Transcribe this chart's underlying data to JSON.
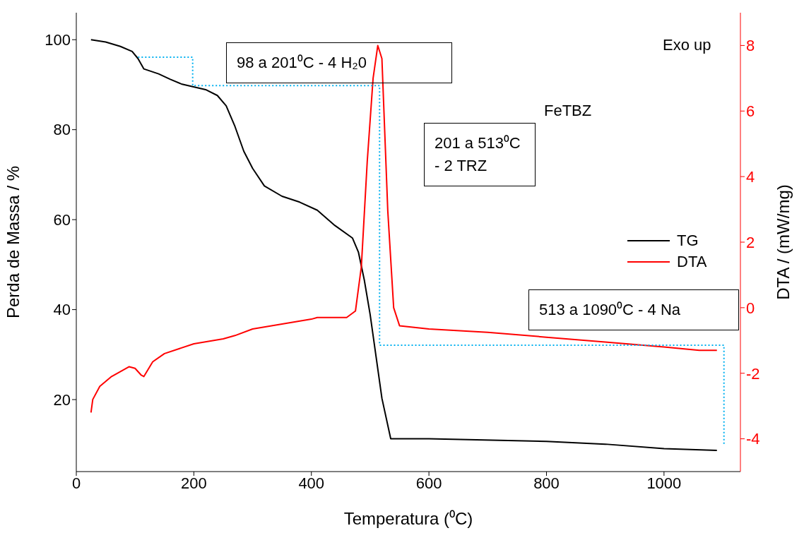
{
  "chart_data": {
    "type": "line",
    "xlabel": "Temperatura (⁰C)",
    "ylabel": "Perda de Massa / %",
    "y2label": "DTA / (mW/mg)",
    "xlim": [
      0,
      1130
    ],
    "xticks": [
      0,
      200,
      400,
      600,
      800,
      1000
    ],
    "ylim": [
      4,
      106
    ],
    "yticks": [
      20,
      40,
      60,
      80,
      100
    ],
    "y2lim": [
      -5,
      9
    ],
    "y2ticks": [
      -4,
      -2,
      0,
      2,
      4,
      6,
      8
    ],
    "grid": false,
    "legend": "right",
    "marker": "none",
    "annotations": [
      "Exo up",
      "FeTBZ",
      "98 a 201⁰C - 4 H₂0",
      "201 a 513⁰C - 2 TRZ",
      "513 a 1090⁰C - 4 Na"
    ],
    "series": [
      {
        "name": "TG",
        "color": "#000000",
        "line_style": "solid",
        "x": [
          25,
          50,
          75,
          95,
          105,
          115,
          140,
          160,
          180,
          220,
          240,
          255,
          270,
          285,
          300,
          320,
          350,
          380,
          410,
          440,
          470,
          480,
          490,
          500,
          510,
          520,
          535,
          600,
          800,
          900,
          1000,
          1090
        ],
        "values": [
          100,
          99.5,
          98.5,
          97.4,
          95.8,
          93.5,
          92.4,
          91.2,
          90.1,
          88.9,
          87.6,
          85.3,
          80.7,
          75.2,
          71.4,
          67.5,
          65.2,
          63.9,
          62.1,
          58.7,
          55.9,
          52.8,
          46.6,
          38.9,
          29.6,
          20.3,
          11.3,
          11.3,
          10.7,
          10.1,
          9.1,
          8.7
        ]
      },
      {
        "name": "DTA",
        "color": "#ff0000",
        "axis": "y2",
        "line_style": "solid",
        "x": [
          25,
          28,
          40,
          60,
          90,
          100,
          110,
          115,
          130,
          150,
          200,
          250,
          270,
          300,
          350,
          400,
          410,
          460,
          475,
          485,
          495,
          505,
          513,
          520,
          530,
          540,
          550,
          600,
          700,
          800,
          900,
          1000,
          1060,
          1090
        ],
        "values": [
          -3.2,
          -2.8,
          -2.4,
          -2.1,
          -1.8,
          -1.85,
          -2.05,
          -2.1,
          -1.65,
          -1.4,
          -1.1,
          -0.95,
          -0.85,
          -0.65,
          -0.5,
          -0.35,
          -0.3,
          -0.3,
          -0.1,
          1.25,
          4.45,
          7.0,
          8.0,
          7.6,
          2.95,
          0.0,
          -0.55,
          -0.65,
          -0.75,
          -0.9,
          -1.05,
          -1.2,
          -1.3,
          -1.3
        ]
      },
      {
        "type": "line",
        "color": "#00b0f0",
        "line_style": "dotted",
        "x": [
          105,
          198,
          198,
          516,
          516,
          1102,
          1102
        ],
        "values": [
          96.1,
          96.1,
          89.8,
          89.8,
          32.1,
          32.1,
          9.8
        ]
      }
    ]
  }
}
